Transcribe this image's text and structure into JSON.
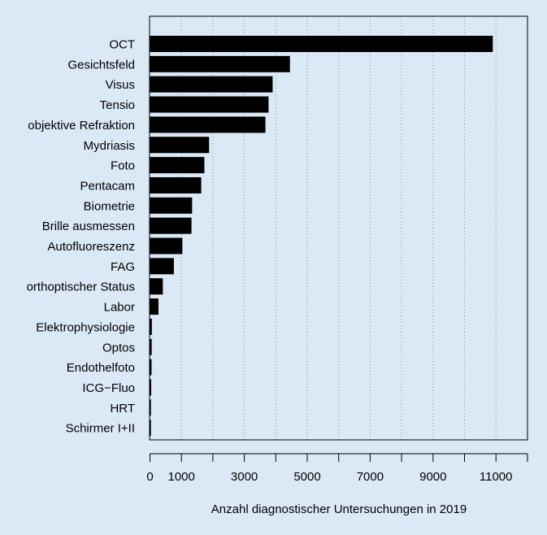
{
  "chart_data": {
    "type": "bar",
    "orientation": "horizontal",
    "categories": [
      "OCT",
      "Gesichtsfeld",
      "Visus",
      "Tensio",
      "objektive Refraktion",
      "Mydriasis",
      "Foto",
      "Pentacam",
      "Biometrie",
      "Brille ausmessen",
      "Autofluoreszenz",
      "FAG",
      "orthoptischer Status",
      "Labor",
      "Elektrophysiologie",
      "Optos",
      "Endothelfoto",
      "ICG−Fluo",
      "HRT",
      "Schirmer I+II"
    ],
    "values": [
      10900,
      4450,
      3900,
      3770,
      3670,
      1880,
      1730,
      1630,
      1340,
      1320,
      1030,
      760,
      410,
      270,
      60,
      55,
      50,
      40,
      30,
      20
    ],
    "xlabel": "Anzahl diagnostischer Untersuchungen in 2019",
    "ylabel": "",
    "xlim": [
      0,
      12000
    ],
    "x_tick_labels": [
      "0",
      "1000",
      "3000",
      "5000",
      "7000",
      "9000",
      "11000"
    ],
    "x_tick_values": [
      0,
      1000,
      3000,
      5000,
      7000,
      9000,
      11000
    ],
    "grid_values": [
      1000,
      2000,
      3000,
      4000,
      5000,
      6000,
      7000,
      8000,
      9000,
      10000,
      11000
    ],
    "grid": "vertical dotted",
    "bar_color": "#000000",
    "background": "#dbe9f6"
  }
}
